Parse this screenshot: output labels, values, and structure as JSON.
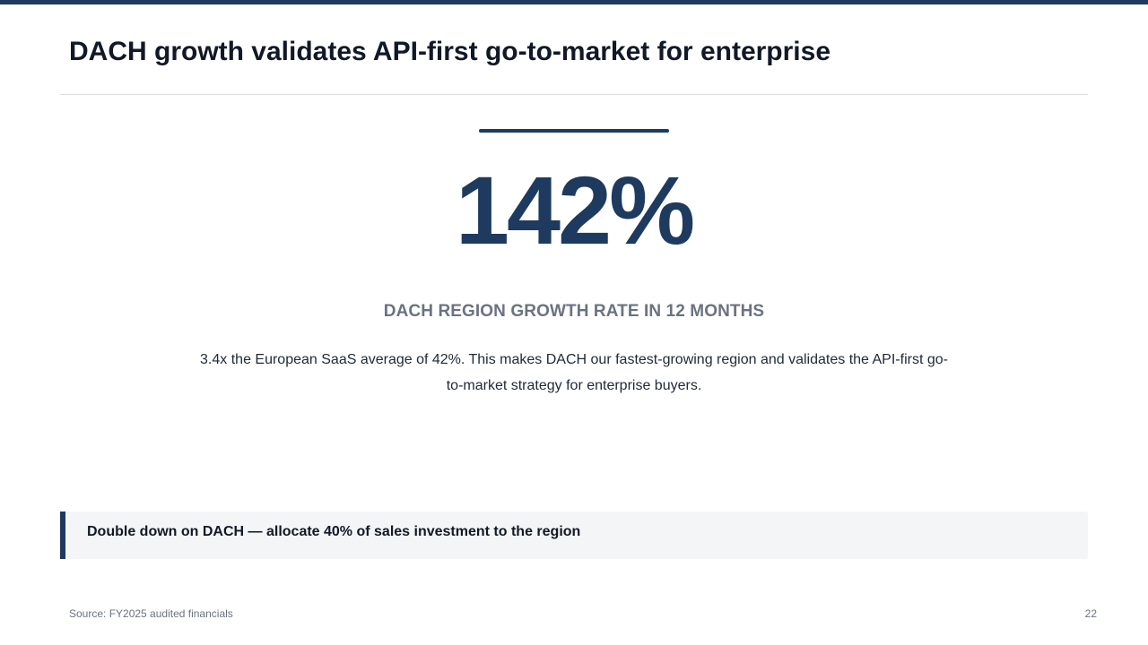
{
  "slide": {
    "title": "DACH growth validates API-first go-to-market for enterprise",
    "metric": {
      "value": "142%",
      "label": "DACH REGION GROWTH RATE IN 12 MONTHS",
      "description": "3.4x the European SaaS average of 42%. This makes DACH our fastest-growing region and validates the API-first go-to-market strategy for enterprise buyers."
    },
    "callout": {
      "text": "Double down on DACH — allocate 40% of sales investment to the region"
    },
    "footer": {
      "source": "Source: FY2025 audited financials",
      "page_number": "22"
    }
  },
  "colors": {
    "accent": "#1e3a5f",
    "title_text": "#111827",
    "muted_text": "#6b7280",
    "callout_background": "#f3f5f6",
    "divider": "#d9dde2"
  }
}
